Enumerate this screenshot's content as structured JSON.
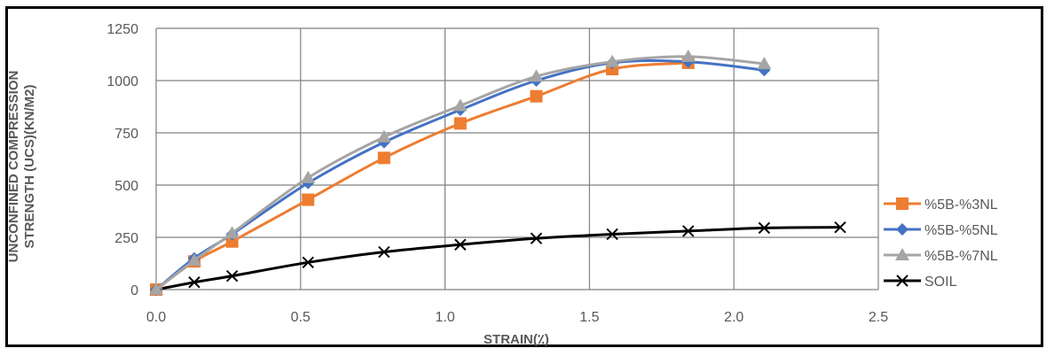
{
  "chart_data": {
    "type": "line",
    "xlabel": "STRAIN(٪)",
    "ylabel_lines": [
      "UNCONFINED COMPRESSION",
      "STRENGTH (UCS)(KN/M2)"
    ],
    "xlim": [
      0,
      2.5
    ],
    "ylim": [
      0,
      1250
    ],
    "x_ticks": [
      "0.0",
      "0.5",
      "1.0",
      "1.5",
      "2.0",
      "2.5"
    ],
    "y_ticks": [
      "0",
      "250",
      "500",
      "750",
      "1000",
      "1250"
    ],
    "grid": true,
    "legend_position": "right",
    "series": [
      {
        "name": "%5B-%3NL",
        "color": "#ED7D31",
        "marker": "square",
        "x": [
          0,
          0.132,
          0.263,
          0.526,
          0.789,
          1.053,
          1.316,
          1.579,
          1.842
        ],
        "y": [
          0,
          135,
          230,
          430,
          630,
          795,
          925,
          1055,
          1085
        ]
      },
      {
        "name": "%5B-%5NL",
        "color": "#4472C4",
        "marker": "diamond",
        "x": [
          0,
          0.132,
          0.263,
          0.526,
          0.789,
          1.053,
          1.316,
          1.579,
          1.842,
          2.105
        ],
        "y": [
          0,
          150,
          265,
          510,
          705,
          860,
          1000,
          1085,
          1090,
          1050
        ]
      },
      {
        "name": "%5B-%7NL",
        "color": "#A5A5A5",
        "marker": "triangle",
        "x": [
          0,
          0.132,
          0.263,
          0.526,
          0.789,
          1.053,
          1.316,
          1.579,
          1.842,
          2.105
        ],
        "y": [
          0,
          140,
          270,
          535,
          730,
          880,
          1020,
          1090,
          1115,
          1080
        ]
      },
      {
        "name": "SOIL",
        "color": "#000000",
        "marker": "x",
        "x": [
          0,
          0.132,
          0.263,
          0.526,
          0.789,
          1.053,
          1.316,
          1.579,
          1.842,
          2.105,
          2.368
        ],
        "y": [
          0,
          35,
          65,
          130,
          180,
          215,
          245,
          265,
          280,
          295,
          298
        ]
      }
    ]
  }
}
